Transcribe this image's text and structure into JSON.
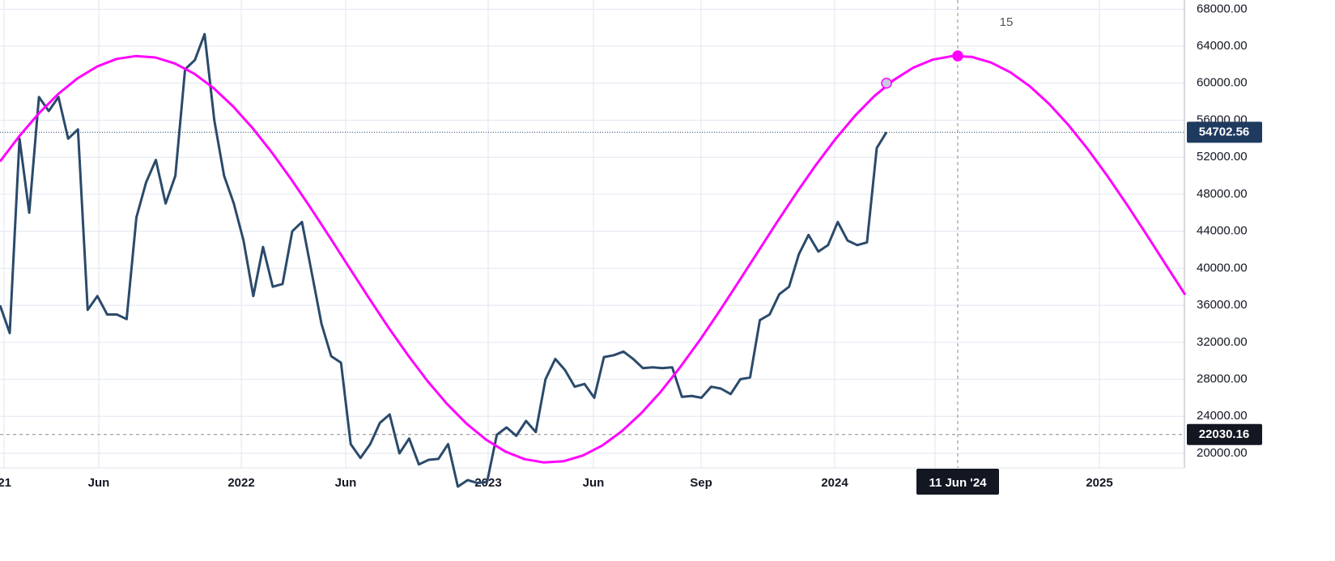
{
  "chart_data": {
    "type": "line",
    "series": [
      {
        "name": "Price",
        "color": "#2b4a6b",
        "values": [
          36000,
          33000,
          54000,
          46000,
          58500,
          57000,
          58500,
          54000,
          55000,
          35500,
          37000,
          35000,
          35000,
          34500,
          45500,
          49300,
          51700,
          47000,
          50000,
          61500,
          62500,
          65300,
          56000,
          50000,
          47000,
          43000,
          37000,
          42300,
          38000,
          38300,
          44000,
          45000,
          39500,
          34000,
          30500,
          29800,
          21000,
          19500,
          21000,
          23300,
          24200,
          20000,
          21600,
          18800,
          19300,
          19400,
          21000,
          16400,
          17100,
          16800,
          16900,
          22000,
          22800,
          21900,
          23500,
          22300,
          28000,
          30200,
          29000,
          27200,
          27500,
          26000,
          30400,
          30600,
          31000,
          30200,
          29200,
          29300,
          29200,
          29300,
          26100,
          26200,
          26000,
          27200,
          27000,
          26400,
          28000,
          28200,
          34400,
          35000,
          37200,
          38000,
          41500,
          43600,
          41800,
          42500,
          45000,
          43000,
          42500,
          42800,
          53000,
          54702.56
        ]
      },
      {
        "name": "Sine",
        "color": "#ff00ff",
        "values": [
          51540,
          54290,
          56740,
          58840,
          60540,
          61810,
          62620,
          62940,
          62780,
          62130,
          61020,
          59450,
          57490,
          55140,
          52490,
          49580,
          46480,
          43260,
          39990,
          36740,
          33580,
          30590,
          27820,
          25350,
          23230,
          21500,
          20200,
          19370,
          19010,
          19140,
          19760,
          20850,
          22390,
          24330,
          26640,
          29290,
          32180,
          35270,
          38490,
          41760,
          45010,
          48180,
          51190,
          53970,
          56470,
          58610,
          60350,
          61680,
          62540,
          62930,
          62850,
          62240,
          61180,
          59670,
          57750,
          55450,
          52830,
          49950,
          46870,
          43670,
          40390,
          37130
        ]
      }
    ],
    "ylim": [
      16150,
      68990
    ],
    "yticks": [
      {
        "value": 20000,
        "label": "20000.00"
      },
      {
        "value": 24000,
        "label": "24000.00"
      },
      {
        "value": 28000,
        "label": "28000.00"
      },
      {
        "value": 32000,
        "label": "32000.00"
      },
      {
        "value": 36000,
        "label": "36000.00"
      },
      {
        "value": 40000,
        "label": "40000.00"
      },
      {
        "value": 44000,
        "label": "44000.00"
      },
      {
        "value": 48000,
        "label": "48000.00"
      },
      {
        "value": 52000,
        "label": "52000.00"
      },
      {
        "value": 56000,
        "label": "56000.00"
      },
      {
        "value": 60000,
        "label": "60000.00"
      },
      {
        "value": 64000,
        "label": "64000.00"
      },
      {
        "value": 68000,
        "label": "68000.00"
      }
    ],
    "x_labels": [
      "21",
      "Jun",
      "2022",
      "Jun",
      "2023",
      "Jun",
      "Sep",
      "2024",
      "2025"
    ],
    "last_price": 54702.56,
    "reference_price": 22030.16,
    "crosshair_label": "11 Jun '24",
    "annotation": "15",
    "markers": [
      {
        "value": 62950,
        "color": "#ff00ff"
      },
      {
        "value": 60000,
        "color": "#c8c8e6"
      }
    ],
    "grid": true
  }
}
